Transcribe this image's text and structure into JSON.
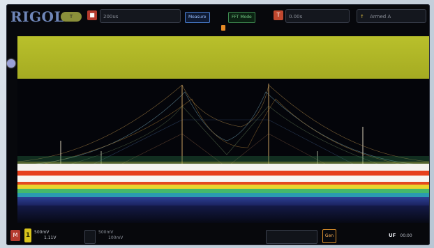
{
  "header": {
    "logo": "RIGOL",
    "logo_badge": "T",
    "timebase": "200us",
    "sample_info": "",
    "measure_label": "Measure",
    "mode_label": "FFT Mode",
    "trigger_offset": "0.00s",
    "trigger_mode": "Armed A"
  },
  "footer": {
    "ch1_label": "1",
    "ch1_vdiv": "500mV",
    "ch1_offset": "1.11V",
    "ch2_label": "",
    "ch2_vdiv": "500mV",
    "ch2_offset": "100mV",
    "gen_label": "Gen",
    "status_label": "UF",
    "status_value": "00:00"
  },
  "colors": {
    "bg": "#07080c",
    "yellow_band": "#b9c02b",
    "red_band": "#e6401c",
    "white_band": "#f3f2ef",
    "accent_blue": "#4a7fd1",
    "accent_green": "#3e8a50"
  },
  "icons": {
    "channel_marker": "circle-marker-icon",
    "trigger_marker": "orange-trigger-icon"
  }
}
